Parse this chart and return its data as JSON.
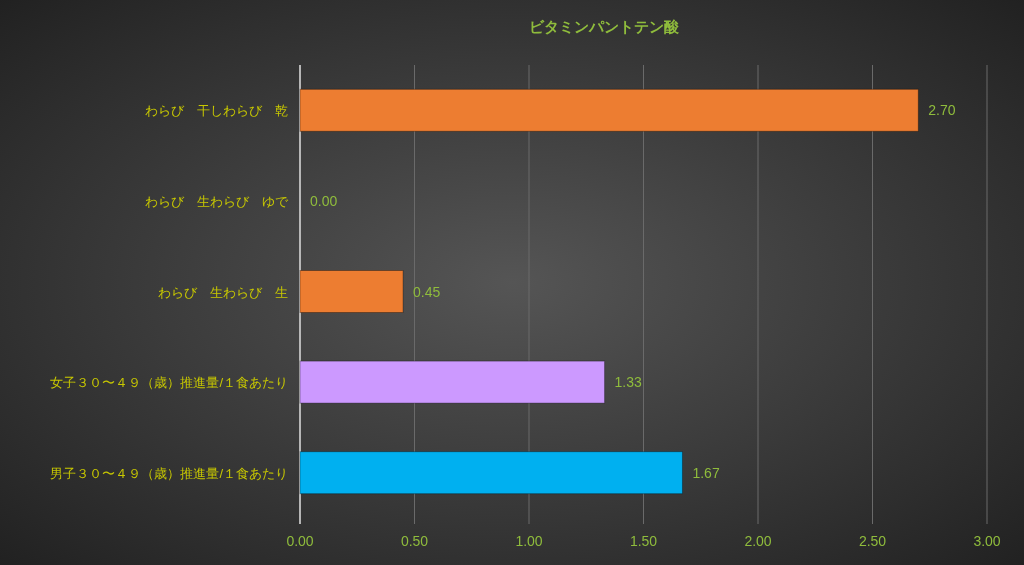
{
  "chart_data": {
    "type": "bar",
    "orientation": "horizontal",
    "title": "ビタミンパントテン酸",
    "categories": [
      "わらび　干しわらび　乾",
      "わらび　生わらび　ゆで",
      "わらび　生わらび　生",
      "女子３０〜４９（歳）推進量/１食あたり",
      "男子３０〜４９（歳）推進量/１食あたり"
    ],
    "values": [
      2.7,
      0,
      0.45,
      1.33,
      1.67
    ],
    "colors": [
      "#ed7d31",
      "#ed7d31",
      "#ed7d31",
      "#cc99ff",
      "#00b0f0"
    ],
    "value_labels": [
      "2.70",
      "0.00",
      "0.45",
      "1.33",
      "1.67"
    ],
    "xlim": [
      0,
      3
    ],
    "xticks": [
      {
        "value": 0,
        "label": "0.00"
      },
      {
        "value": 0.5,
        "label": "0.50"
      },
      {
        "value": 1,
        "label": "1.00"
      },
      {
        "value": 1.5,
        "label": "1.50"
      },
      {
        "value": 2,
        "label": "2.00"
      },
      {
        "value": 2.5,
        "label": "2.50"
      },
      {
        "value": 3,
        "label": "3.00"
      }
    ],
    "grid": "x"
  }
}
